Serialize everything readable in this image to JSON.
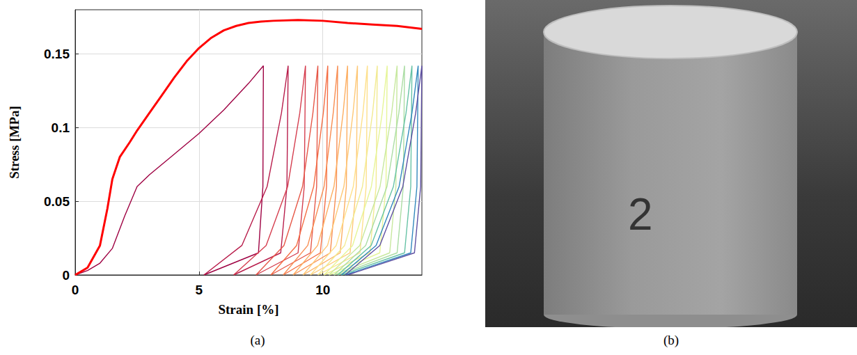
{
  "chart_data": {
    "type": "line",
    "x_label": "Strain [%]",
    "y_label": "Stress [MPa]",
    "xlim": [
      0,
      14
    ],
    "xticks": [
      0,
      5,
      10
    ],
    "ylim": [
      0,
      0.18
    ],
    "yticks": [
      0,
      0.05,
      0.1,
      0.15
    ],
    "grid": true,
    "series": [
      {
        "color": "#ff0000",
        "x": [
          0,
          0.5,
          1,
          1.3,
          1.5,
          1.8,
          2.2,
          2.5,
          3,
          3.5,
          4,
          4.5,
          5,
          5.5,
          6,
          6.5,
          7,
          7.5,
          8,
          9,
          10,
          11,
          12,
          13,
          14
        ],
        "values": [
          0,
          0.005,
          0.02,
          0.045,
          0.065,
          0.08,
          0.09,
          0.098,
          0.11,
          0.122,
          0.134,
          0.145,
          0.154,
          0.161,
          0.166,
          0.169,
          0.171,
          0.172,
          0.1725,
          0.173,
          0.1725,
          0.171,
          0.17,
          0.169,
          0.167
        ]
      },
      {
        "color": "#9e0142",
        "x": [
          0,
          0.5,
          1,
          1.5,
          2,
          2.5,
          3,
          4,
          5,
          6,
          7,
          7.6,
          7.58,
          7.4,
          5.2
        ],
        "values": [
          0,
          0.003,
          0.008,
          0.018,
          0.04,
          0.06,
          0.068,
          0.082,
          0.096,
          0.112,
          0.13,
          0.142,
          0.06,
          0.015,
          0
        ]
      },
      {
        "color": "#b81d4b",
        "x": [
          5.2,
          6.73,
          7.75,
          8.33,
          8.6,
          8.55,
          8.3,
          6.4
        ],
        "values": [
          0,
          0.02,
          0.06,
          0.11,
          0.142,
          0.06,
          0.015,
          0
        ]
      },
      {
        "color": "#d53e4f",
        "x": [
          6.4,
          7.71,
          8.58,
          9.07,
          9.3,
          9.25,
          9.0,
          7.3
        ],
        "values": [
          0,
          0.02,
          0.06,
          0.11,
          0.142,
          0.06,
          0.015,
          0
        ]
      },
      {
        "color": "#e65848",
        "x": [
          7.3,
          8.43,
          9.18,
          9.6,
          9.8,
          9.75,
          9.5,
          7.9
        ],
        "values": [
          0,
          0.02,
          0.06,
          0.11,
          0.142,
          0.06,
          0.015,
          0
        ]
      },
      {
        "color": "#f46d43",
        "x": [
          7.9,
          8.94,
          9.63,
          10.02,
          10.2,
          10.15,
          9.9,
          8.4
        ],
        "values": [
          0,
          0.02,
          0.06,
          0.11,
          0.142,
          0.06,
          0.015,
          0
        ]
      },
      {
        "color": "#f88d52",
        "x": [
          8.4,
          9.39,
          10.05,
          10.42,
          10.6,
          10.55,
          10.3,
          8.8
        ],
        "values": [
          0,
          0.02,
          0.06,
          0.11,
          0.142,
          0.06,
          0.015,
          0
        ]
      },
      {
        "color": "#fdae61",
        "x": [
          8.8,
          9.79,
          10.45,
          10.82,
          11.0,
          10.95,
          10.7,
          9.2
        ],
        "values": [
          0,
          0.02,
          0.06,
          0.11,
          0.142,
          0.06,
          0.015,
          0
        ]
      },
      {
        "color": "#fec877",
        "x": [
          9.2,
          10.19,
          10.85,
          11.22,
          11.4,
          11.35,
          11.1,
          9.5
        ],
        "values": [
          0,
          0.02,
          0.06,
          0.11,
          0.142,
          0.06,
          0.015,
          0
        ]
      },
      {
        "color": "#fee08b",
        "x": [
          9.5,
          10.54,
          11.23,
          11.62,
          11.8,
          11.75,
          11.5,
          9.8
        ],
        "values": [
          0,
          0.02,
          0.06,
          0.11,
          0.142,
          0.06,
          0.015,
          0
        ]
      },
      {
        "color": "#f2ea91",
        "x": [
          9.8,
          10.88,
          11.6,
          12.01,
          12.2,
          12.15,
          11.9,
          10.05
        ],
        "values": [
          0,
          0.02,
          0.06,
          0.11,
          0.142,
          0.06,
          0.015,
          0
        ]
      },
      {
        "color": "#e6f598",
        "x": [
          10.05,
          11.2,
          11.96,
          12.4,
          12.6,
          12.55,
          12.3,
          10.25
        ],
        "values": [
          0,
          0.02,
          0.06,
          0.11,
          0.142,
          0.06,
          0.015,
          0
        ]
      },
      {
        "color": "#c7e89e",
        "x": [
          10.25,
          11.49,
          12.31,
          12.78,
          13.0,
          12.95,
          12.7,
          10.45
        ],
        "values": [
          0,
          0.02,
          0.06,
          0.11,
          0.142,
          0.06,
          0.015,
          0
        ]
      },
      {
        "color": "#abdda4",
        "x": [
          10.45,
          11.73,
          12.59,
          13.07,
          13.3,
          13.25,
          13.0,
          10.6
        ],
        "values": [
          0,
          0.02,
          0.06,
          0.11,
          0.142,
          0.06,
          0.015,
          0
        ]
      },
      {
        "color": "#66c2a5",
        "x": [
          10.6,
          11.95,
          12.85,
          13.36,
          13.6,
          13.55,
          13.3,
          10.75
        ],
        "values": [
          0,
          0.02,
          0.06,
          0.11,
          0.142,
          0.06,
          0.015,
          0
        ]
      },
      {
        "color": "#3288bd",
        "x": [
          10.75,
          12.15,
          13.08,
          13.6,
          13.85,
          13.8,
          13.55,
          10.9
        ],
        "values": [
          0,
          0.02,
          0.06,
          0.11,
          0.142,
          0.06,
          0.015,
          0
        ]
      },
      {
        "color": "#5e4fa2",
        "x": [
          10.9,
          12.3,
          13.23,
          13.75,
          14.0,
          13.95,
          13.7,
          11.0
        ],
        "values": [
          0,
          0.02,
          0.06,
          0.11,
          0.142,
          0.06,
          0.015,
          0
        ]
      }
    ]
  },
  "figure": {
    "captions": [
      "(a)",
      "(b)"
    ],
    "photo": {
      "label": "2"
    }
  }
}
